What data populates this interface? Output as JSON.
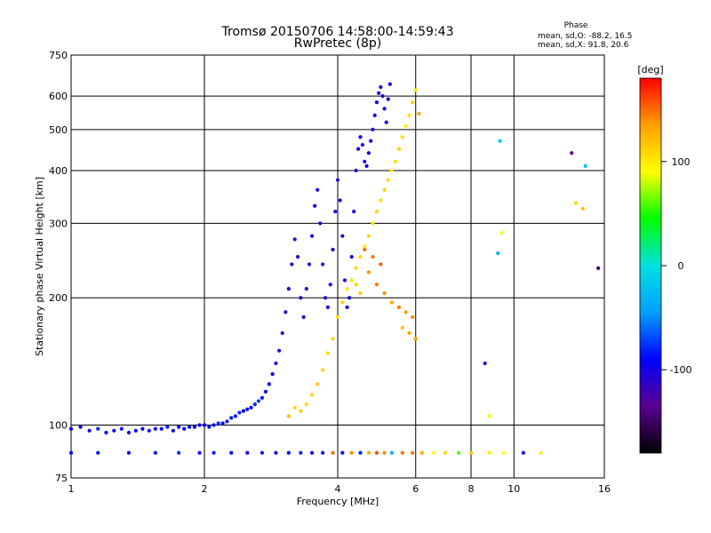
{
  "chart_data": {
    "type": "scatter",
    "title": "Tromsø 20150706 14:58:00-14:59:43",
    "subtitle": "RwPretec (8p)",
    "xlabel": "Frequency [MHz]",
    "ylabel": "Stationary phase Virtual Height [km]",
    "x_scale": "log",
    "y_scale": "log",
    "xlim": [
      1,
      16
    ],
    "ylim": [
      75,
      750
    ],
    "x_ticks": [
      1,
      2,
      4,
      6,
      8,
      10,
      16
    ],
    "y_ticks": [
      75,
      100,
      200,
      300,
      400,
      500,
      600,
      750
    ],
    "grid": true,
    "stats": {
      "heading": "Phase",
      "o_line": "mean, sd,O: -88.2, 16.5",
      "x_line": "mean, sd,X:  91.8, 20.6"
    },
    "colorbar": {
      "label": "[deg]",
      "range": [
        -180,
        180
      ],
      "ticks": [
        100,
        0,
        -100
      ],
      "colors": [
        "#000000",
        "#5a0090",
        "#0000ff",
        "#00a0ff",
        "#00e0e0",
        "#00ff00",
        "#ffff00",
        "#ffa000",
        "#ff0000"
      ]
    },
    "series": [
      {
        "values": [
          [
            1.0,
            98,
            -95
          ],
          [
            1.05,
            99,
            -90
          ],
          [
            1.1,
            97,
            -95
          ],
          [
            1.15,
            98,
            -80
          ],
          [
            1.2,
            96,
            -90
          ],
          [
            1.25,
            97,
            -95
          ],
          [
            1.3,
            98,
            -85
          ],
          [
            1.35,
            96,
            -95
          ],
          [
            1.4,
            97,
            -90
          ],
          [
            1.45,
            98,
            -95
          ],
          [
            1.5,
            97,
            -85
          ],
          [
            1.55,
            98,
            -95
          ],
          [
            1.6,
            98,
            -90
          ],
          [
            1.65,
            99,
            -80
          ],
          [
            1.7,
            97,
            -95
          ],
          [
            1.75,
            99,
            -90
          ],
          [
            1.8,
            98,
            -95
          ],
          [
            1.85,
            99,
            -85
          ],
          [
            1.9,
            99,
            -90
          ],
          [
            1.95,
            100,
            -95
          ],
          [
            2.0,
            100,
            -90
          ],
          [
            2.05,
            99,
            -85
          ],
          [
            2.1,
            100,
            -95
          ],
          [
            2.15,
            101,
            -80
          ],
          [
            2.2,
            101,
            -90
          ],
          [
            2.25,
            102,
            -95
          ],
          [
            2.3,
            104,
            -85
          ],
          [
            2.35,
            105,
            -90
          ],
          [
            2.4,
            107,
            -80
          ],
          [
            2.45,
            108,
            -95
          ],
          [
            2.5,
            109,
            -85
          ],
          [
            2.55,
            110,
            -90
          ],
          [
            2.6,
            112,
            -80
          ],
          [
            2.65,
            114,
            -75
          ],
          [
            2.7,
            116,
            -85
          ],
          [
            2.75,
            120,
            -90
          ],
          [
            2.8,
            125,
            -95
          ],
          [
            2.85,
            132,
            -100
          ],
          [
            2.9,
            140,
            -105
          ],
          [
            2.95,
            150,
            -110
          ],
          [
            3.0,
            165,
            -115
          ],
          [
            3.05,
            185,
            -110
          ],
          [
            3.1,
            210,
            -105
          ],
          [
            3.15,
            240,
            -110
          ],
          [
            3.2,
            275,
            -115
          ],
          [
            3.25,
            250,
            -110
          ],
          [
            3.3,
            200,
            -105
          ],
          [
            3.35,
            180,
            -110
          ],
          [
            3.4,
            210,
            -115
          ],
          [
            3.45,
            240,
            -110
          ],
          [
            3.5,
            280,
            -105
          ],
          [
            3.55,
            330,
            -100
          ],
          [
            3.6,
            360,
            -105
          ],
          [
            3.65,
            300,
            -110
          ],
          [
            3.7,
            240,
            -115
          ],
          [
            3.75,
            200,
            -110
          ],
          [
            3.8,
            190,
            -105
          ],
          [
            3.85,
            215,
            -100
          ],
          [
            3.9,
            260,
            -105
          ],
          [
            3.95,
            320,
            -110
          ],
          [
            4.0,
            380,
            -105
          ],
          [
            4.05,
            340,
            -100
          ],
          [
            4.1,
            280,
            -105
          ],
          [
            4.15,
            220,
            -110
          ],
          [
            4.2,
            190,
            -105
          ],
          [
            4.25,
            200,
            -100
          ],
          [
            4.3,
            250,
            -105
          ],
          [
            4.35,
            320,
            -110
          ],
          [
            4.4,
            400,
            -105
          ],
          [
            4.45,
            450,
            -100
          ],
          [
            4.5,
            480,
            -95
          ],
          [
            4.55,
            460,
            -100
          ],
          [
            4.6,
            420,
            -105
          ],
          [
            4.65,
            410,
            -100
          ],
          [
            4.7,
            440,
            -95
          ],
          [
            4.75,
            470,
            -100
          ],
          [
            4.8,
            500,
            -105
          ],
          [
            4.85,
            540,
            -100
          ],
          [
            4.9,
            580,
            -95
          ],
          [
            4.95,
            610,
            -100
          ],
          [
            5.0,
            630,
            -105
          ],
          [
            5.05,
            600,
            -100
          ],
          [
            5.1,
            560,
            -95
          ],
          [
            5.15,
            520,
            -100
          ],
          [
            5.2,
            590,
            -105
          ],
          [
            5.25,
            640,
            -100
          ]
        ]
      },
      {
        "values": [
          [
            3.1,
            105,
            120
          ],
          [
            3.2,
            110,
            110
          ],
          [
            3.3,
            108,
            115
          ],
          [
            3.4,
            112,
            105
          ],
          [
            3.5,
            118,
            110
          ],
          [
            3.6,
            125,
            115
          ],
          [
            3.7,
            135,
            110
          ],
          [
            3.8,
            148,
            105
          ],
          [
            3.9,
            160,
            110
          ],
          [
            4.0,
            180,
            105
          ],
          [
            4.1,
            195,
            110
          ],
          [
            4.2,
            210,
            100
          ],
          [
            4.3,
            220,
            105
          ],
          [
            4.4,
            235,
            110
          ],
          [
            4.5,
            250,
            105
          ],
          [
            4.6,
            265,
            100
          ],
          [
            4.7,
            280,
            110
          ],
          [
            4.8,
            300,
            105
          ],
          [
            4.9,
            320,
            110
          ],
          [
            5.0,
            340,
            105
          ],
          [
            5.1,
            360,
            110
          ],
          [
            5.2,
            380,
            105
          ],
          [
            5.3,
            400,
            100
          ],
          [
            5.4,
            420,
            105
          ],
          [
            5.5,
            450,
            110
          ],
          [
            5.6,
            480,
            105
          ],
          [
            5.7,
            510,
            100
          ],
          [
            5.8,
            540,
            105
          ],
          [
            5.9,
            580,
            110
          ],
          [
            6.0,
            620,
            105
          ]
        ]
      },
      {
        "values": [
          [
            1.0,
            86,
            -90
          ],
          [
            1.15,
            86,
            -85
          ],
          [
            1.35,
            86,
            -95
          ],
          [
            1.55,
            86,
            -90
          ],
          [
            1.75,
            86,
            -80
          ],
          [
            1.95,
            86,
            -95
          ],
          [
            2.1,
            86,
            -85
          ],
          [
            2.3,
            86,
            -90
          ],
          [
            2.5,
            86,
            -95
          ],
          [
            2.7,
            86,
            -85
          ],
          [
            2.9,
            86,
            -95
          ],
          [
            3.1,
            86,
            -90
          ],
          [
            3.3,
            86,
            -80
          ],
          [
            3.5,
            86,
            -95
          ],
          [
            3.7,
            86,
            -100
          ],
          [
            3.9,
            86,
            150
          ],
          [
            4.1,
            86,
            -90
          ],
          [
            4.3,
            86,
            140
          ],
          [
            4.5,
            86,
            -85
          ],
          [
            4.7,
            86,
            130
          ],
          [
            4.9,
            86,
            160
          ],
          [
            5.1,
            86,
            140
          ],
          [
            5.3,
            86,
            -40
          ],
          [
            5.6,
            86,
            150
          ],
          [
            5.9,
            86,
            145
          ],
          [
            6.2,
            86,
            130
          ],
          [
            6.6,
            86,
            90
          ],
          [
            7.0,
            86,
            110
          ],
          [
            7.5,
            86,
            60
          ],
          [
            8.0,
            86,
            120
          ],
          [
            8.8,
            86,
            100
          ],
          [
            9.5,
            86,
            90
          ],
          [
            10.5,
            86,
            -90
          ],
          [
            11.5,
            86,
            95
          ]
        ]
      },
      {
        "values": [
          [
            4.7,
            230,
            140
          ],
          [
            4.9,
            215,
            150
          ],
          [
            5.1,
            205,
            140
          ],
          [
            5.3,
            195,
            130
          ],
          [
            5.5,
            190,
            145
          ],
          [
            5.7,
            185,
            135
          ],
          [
            5.9,
            180,
            140
          ],
          [
            5.6,
            170,
            120
          ],
          [
            5.8,
            165,
            130
          ],
          [
            6.0,
            160,
            135
          ],
          [
            4.6,
            260,
            150
          ],
          [
            4.8,
            250,
            145
          ],
          [
            5.0,
            240,
            155
          ],
          [
            4.4,
            215,
            110
          ],
          [
            4.5,
            205,
            115
          ]
        ]
      },
      {
        "values": [
          [
            9.3,
            470,
            -20
          ],
          [
            9.2,
            255,
            -30
          ],
          [
            9.4,
            285,
            90
          ],
          [
            8.6,
            140,
            -110
          ],
          [
            8.8,
            105,
            95
          ],
          [
            13.5,
            440,
            -130
          ],
          [
            14.5,
            410,
            -20
          ],
          [
            13.8,
            335,
            110
          ],
          [
            14.3,
            325,
            120
          ],
          [
            15.5,
            235,
            -150
          ],
          [
            6.1,
            545,
            130
          ]
        ]
      }
    ]
  }
}
